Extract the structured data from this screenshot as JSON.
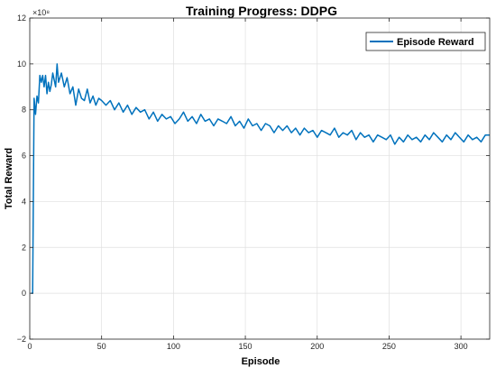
{
  "chart_data": {
    "type": "line",
    "title": "Training Progress: DDPG",
    "xlabel": "Episode",
    "ylabel": "Total Reward",
    "exponent_label": "×10⁸",
    "xlim": [
      0,
      320
    ],
    "ylim": [
      -2,
      12
    ],
    "xticks": [
      0,
      50,
      100,
      150,
      200,
      250,
      300
    ],
    "yticks": [
      -2,
      0,
      2,
      4,
      6,
      8,
      10,
      12
    ],
    "grid": true,
    "legend": "top-right",
    "series": [
      {
        "name": "Episode Reward",
        "color": "#0072BD",
        "x": [
          1,
          2,
          3,
          4,
          5,
          6,
          7,
          8,
          9,
          10,
          11,
          12,
          13,
          14,
          15,
          16,
          17,
          18,
          19,
          20,
          22,
          24,
          26,
          28,
          30,
          32,
          34,
          36,
          38,
          40,
          42,
          44,
          46,
          48,
          50,
          53,
          56,
          59,
          62,
          65,
          68,
          71,
          74,
          77,
          80,
          83,
          86,
          89,
          92,
          95,
          98,
          101,
          104,
          107,
          110,
          113,
          116,
          119,
          122,
          125,
          128,
          131,
          134,
          137,
          140,
          143,
          146,
          149,
          152,
          155,
          158,
          161,
          164,
          167,
          170,
          173,
          176,
          179,
          182,
          185,
          188,
          191,
          194,
          197,
          200,
          203,
          206,
          209,
          212,
          215,
          218,
          221,
          224,
          227,
          230,
          233,
          236,
          239,
          242,
          245,
          248,
          251,
          254,
          257,
          260,
          263,
          266,
          269,
          272,
          275,
          278,
          281,
          284,
          287,
          290,
          293,
          296,
          299,
          302,
          305,
          308,
          311,
          314,
          317,
          320
        ],
        "values": [
          0.0,
          0.0,
          8.5,
          7.8,
          8.6,
          8.3,
          9.5,
          9.2,
          9.5,
          9.0,
          9.5,
          8.7,
          9.2,
          8.8,
          9.1,
          9.6,
          9.3,
          9.0,
          10.0,
          9.2,
          9.6,
          9.0,
          9.4,
          8.7,
          9.0,
          8.2,
          8.9,
          8.5,
          8.4,
          8.9,
          8.3,
          8.6,
          8.2,
          8.5,
          8.4,
          8.2,
          8.4,
          8.0,
          8.3,
          7.9,
          8.2,
          7.8,
          8.1,
          7.9,
          8.0,
          7.6,
          7.9,
          7.5,
          7.8,
          7.6,
          7.7,
          7.4,
          7.6,
          7.9,
          7.5,
          7.7,
          7.4,
          7.8,
          7.5,
          7.6,
          7.3,
          7.6,
          7.5,
          7.4,
          7.7,
          7.3,
          7.5,
          7.2,
          7.6,
          7.3,
          7.4,
          7.1,
          7.4,
          7.3,
          7.0,
          7.3,
          7.1,
          7.3,
          7.0,
          7.2,
          6.9,
          7.2,
          7.0,
          7.1,
          6.8,
          7.1,
          7.0,
          6.9,
          7.2,
          6.8,
          7.0,
          6.9,
          7.1,
          6.7,
          7.0,
          6.8,
          6.9,
          6.6,
          6.9,
          6.8,
          6.7,
          6.9,
          6.5,
          6.8,
          6.6,
          6.9,
          6.7,
          6.8,
          6.6,
          6.9,
          6.7,
          7.0,
          6.8,
          6.6,
          6.9,
          6.7,
          7.0,
          6.8,
          6.6,
          6.9,
          6.7,
          6.8,
          6.6,
          6.9,
          6.9
        ]
      }
    ]
  }
}
